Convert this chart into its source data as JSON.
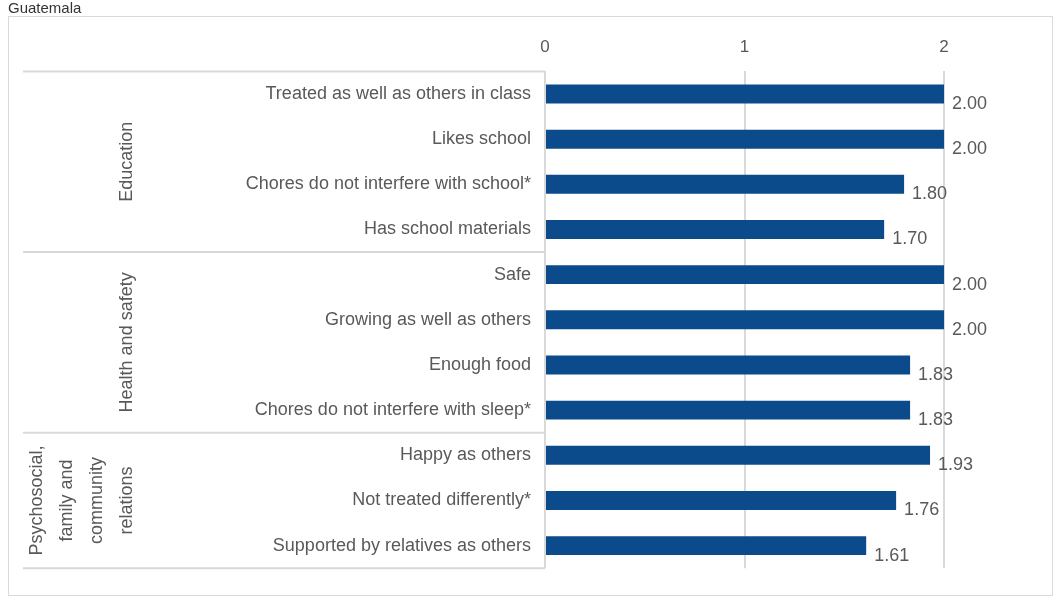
{
  "chart_data": {
    "type": "bar",
    "orientation": "horizontal",
    "title": "Guatemala",
    "categories": [
      "Treated as well as others in class",
      "Likes school",
      "Chores do not interfere with school*",
      "Has school materials",
      "Safe",
      "Growing as well as others",
      "Enough food",
      "Chores do not interfere with sleep*",
      "Happy as others",
      "Not treated differently*",
      "Supported by relatives as others"
    ],
    "values": [
      2,
      2,
      1.8,
      1.7,
      2,
      2,
      1.83,
      1.83,
      1.93,
      1.76,
      1.61
    ],
    "value_labels": [
      "2.00",
      "2.00",
      "1.80",
      "1.70",
      "2.00",
      "2.00",
      "1.83",
      "1.83",
      "1.93",
      "1.76",
      "1.61"
    ],
    "color": "#0b4a8b",
    "xlim": [
      0,
      2
    ],
    "xticks": [
      0,
      1,
      2
    ],
    "grid": "x",
    "legend": false,
    "annotations": [
      "Education",
      "Health and safety",
      "Psychosocial, family and community relations"
    ]
  }
}
